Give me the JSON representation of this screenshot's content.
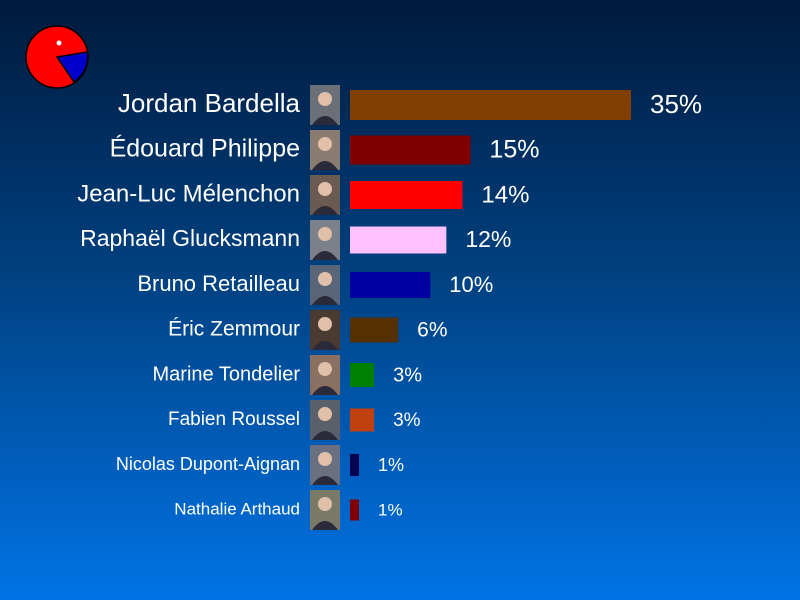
{
  "logo": {
    "icon": "pie-pacman-logo-icon",
    "colors": [
      "#ff0000",
      "#0000cc"
    ]
  },
  "chart_data": {
    "type": "bar",
    "orientation": "horizontal",
    "title": "",
    "xlabel": "",
    "ylabel": "",
    "xlim": [
      0,
      35
    ],
    "grid": false,
    "categories": [
      "Jordan Bardella",
      "Édouard Philippe",
      "Jean-Luc Mélenchon",
      "Raphaël Glucksmann",
      "Bruno Retailleau",
      "Éric Zemmour",
      "Marine Tondelier",
      "Fabien Roussel",
      "Nicolas Dupont-Aignan",
      "Nathalie Arthaud"
    ],
    "values": [
      35,
      15,
      14,
      12,
      10,
      6,
      3,
      3,
      1,
      1
    ],
    "labels": [
      "35%",
      "15%",
      "14%",
      "12%",
      "10%",
      "6%",
      "3%",
      "3%",
      "1%",
      "1%"
    ],
    "colors": [
      "#7f3f00",
      "#800000",
      "#ff0000",
      "#ffc0ff",
      "#0000a0",
      "#553000",
      "#008000",
      "#c04010",
      "#000050",
      "#800000"
    ],
    "photos": [
      "avatar-icon",
      "avatar-icon",
      "avatar-icon",
      "avatar-icon",
      "avatar-icon",
      "avatar-icon",
      "avatar-icon",
      "avatar-icon",
      "avatar-icon",
      "avatar-icon"
    ]
  }
}
